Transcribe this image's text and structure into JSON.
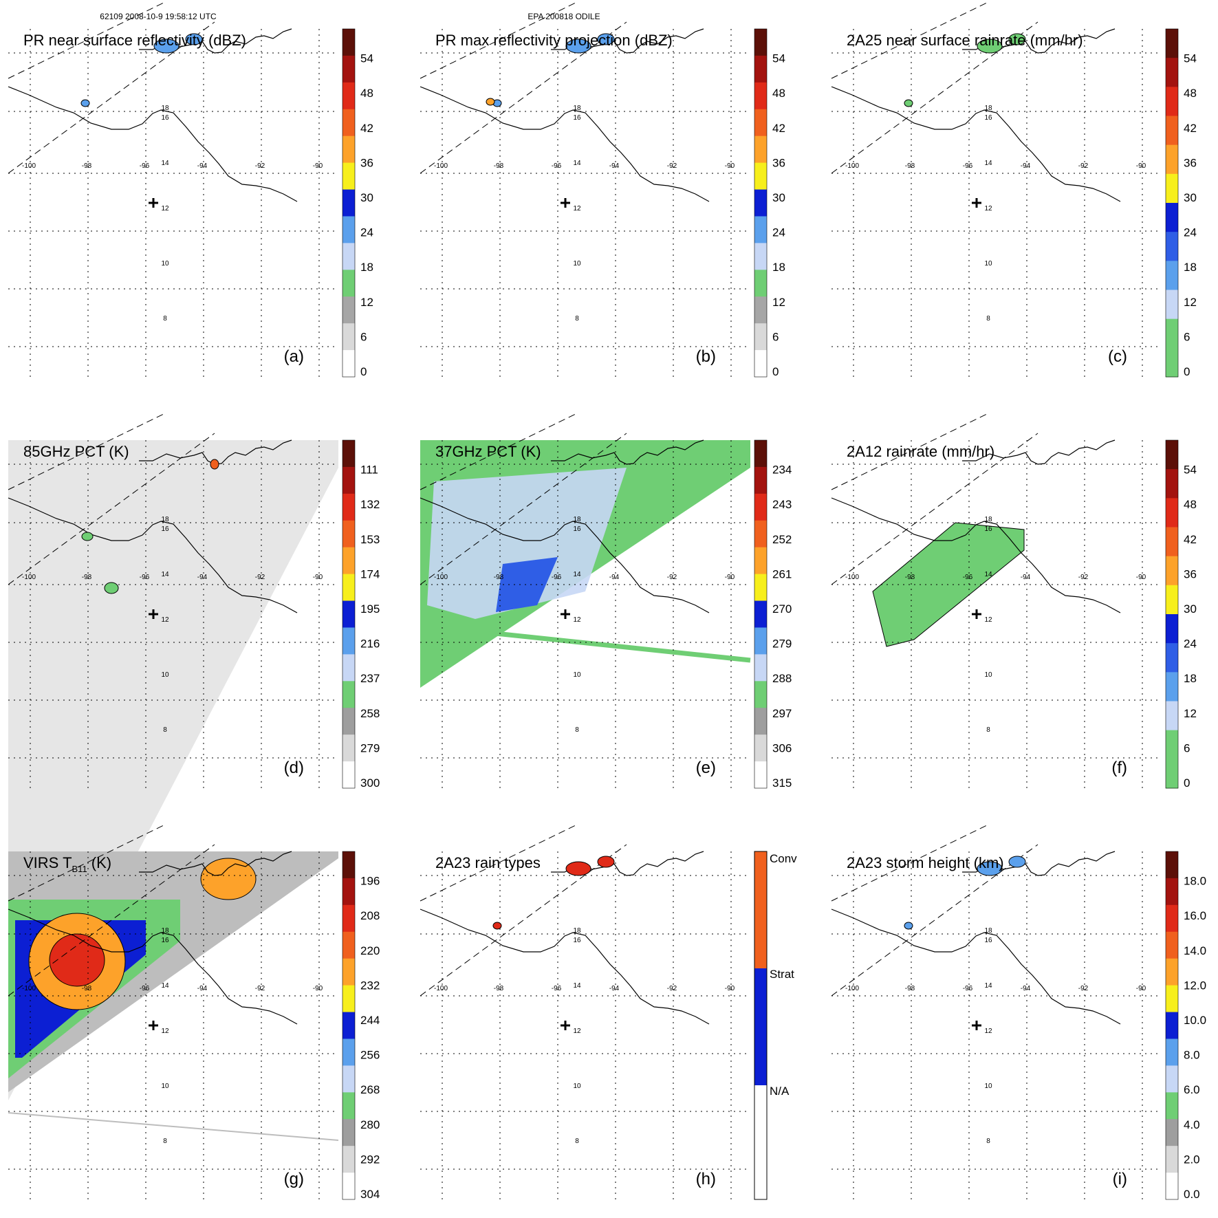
{
  "header": {
    "orbit_time": "62109 2008-10-9 19:58:12 UTC",
    "storm": "EPA 200818 ODILE"
  },
  "map_labels": {
    "longitudes": [
      "-100",
      "-98",
      "-96",
      "-94",
      "-92",
      "-90"
    ],
    "latitudes": [
      "18",
      "16",
      "14",
      "12",
      "10",
      "8"
    ]
  },
  "chart_data": [
    {
      "id": "a",
      "type": "heatmap",
      "title": "PR near surface reflectivity (dBZ)",
      "panel_label": "(a)",
      "colorbar": {
        "ticks": [
          "54",
          "48",
          "42",
          "36",
          "30",
          "24",
          "18",
          "12",
          "6",
          "0"
        ],
        "range": [
          0,
          60
        ],
        "scheme": "dbz"
      }
    },
    {
      "id": "b",
      "type": "heatmap",
      "title": "PR max reflectivity projection (dBZ)",
      "panel_label": "(b)",
      "colorbar": {
        "ticks": [
          "54",
          "48",
          "42",
          "36",
          "30",
          "24",
          "18",
          "12",
          "6",
          "0"
        ],
        "range": [
          0,
          60
        ],
        "scheme": "dbz"
      }
    },
    {
      "id": "c",
      "type": "heatmap",
      "title": "2A25 near surface rainrate (mm/hr)",
      "panel_label": "(c)",
      "colorbar": {
        "ticks": [
          "54",
          "48",
          "42",
          "36",
          "30",
          "24",
          "18",
          "12",
          "6",
          "0"
        ],
        "range": [
          0,
          60
        ],
        "scheme": "rain"
      }
    },
    {
      "id": "d",
      "type": "heatmap",
      "title": "85GHz PCT (K)",
      "panel_label": "(d)",
      "colorbar": {
        "ticks": [
          "111",
          "132",
          "153",
          "174",
          "195",
          "216",
          "237",
          "258",
          "279",
          "300"
        ],
        "range": [
          300,
          90
        ],
        "scheme": "pct"
      }
    },
    {
      "id": "e",
      "type": "heatmap",
      "title": "37GHz PCT (K)",
      "panel_label": "(e)",
      "colorbar": {
        "ticks": [
          "234",
          "243",
          "252",
          "261",
          "270",
          "279",
          "288",
          "297",
          "306",
          "315"
        ],
        "range": [
          315,
          225
        ],
        "scheme": "pct"
      }
    },
    {
      "id": "f",
      "type": "heatmap",
      "title": "2A12 rainrate (mm/hr)",
      "panel_label": "(f)",
      "colorbar": {
        "ticks": [
          "54",
          "48",
          "42",
          "36",
          "30",
          "24",
          "18",
          "12",
          "6",
          "0"
        ],
        "range": [
          0,
          60
        ],
        "scheme": "rain"
      }
    },
    {
      "id": "g",
      "type": "heatmap",
      "title": "VIRS T",
      "title_subscript": "B11",
      "title_suffix": " (K)",
      "panel_label": "(g)",
      "colorbar": {
        "ticks": [
          "196",
          "208",
          "220",
          "232",
          "244",
          "256",
          "268",
          "280",
          "292",
          "304"
        ],
        "range": [
          304,
          184
        ],
        "scheme": "ir"
      }
    },
    {
      "id": "h",
      "type": "heatmap",
      "title": "2A23 rain types",
      "panel_label": "(h)",
      "colorbar": {
        "ticks": [
          "Conv",
          "Strat",
          "N/A"
        ],
        "categories": [
          "Conv",
          "Strat",
          "N/A"
        ],
        "scheme": "raintype"
      }
    },
    {
      "id": "i",
      "type": "heatmap",
      "title": "2A23 storm height (km)",
      "panel_label": "(i)",
      "colorbar": {
        "ticks": [
          "18.0",
          "16.0",
          "14.0",
          "12.0",
          "10.0",
          "8.0",
          "6.0",
          "4.0",
          "2.0",
          "0.0"
        ],
        "range": [
          0,
          20
        ],
        "scheme": "height"
      }
    }
  ]
}
